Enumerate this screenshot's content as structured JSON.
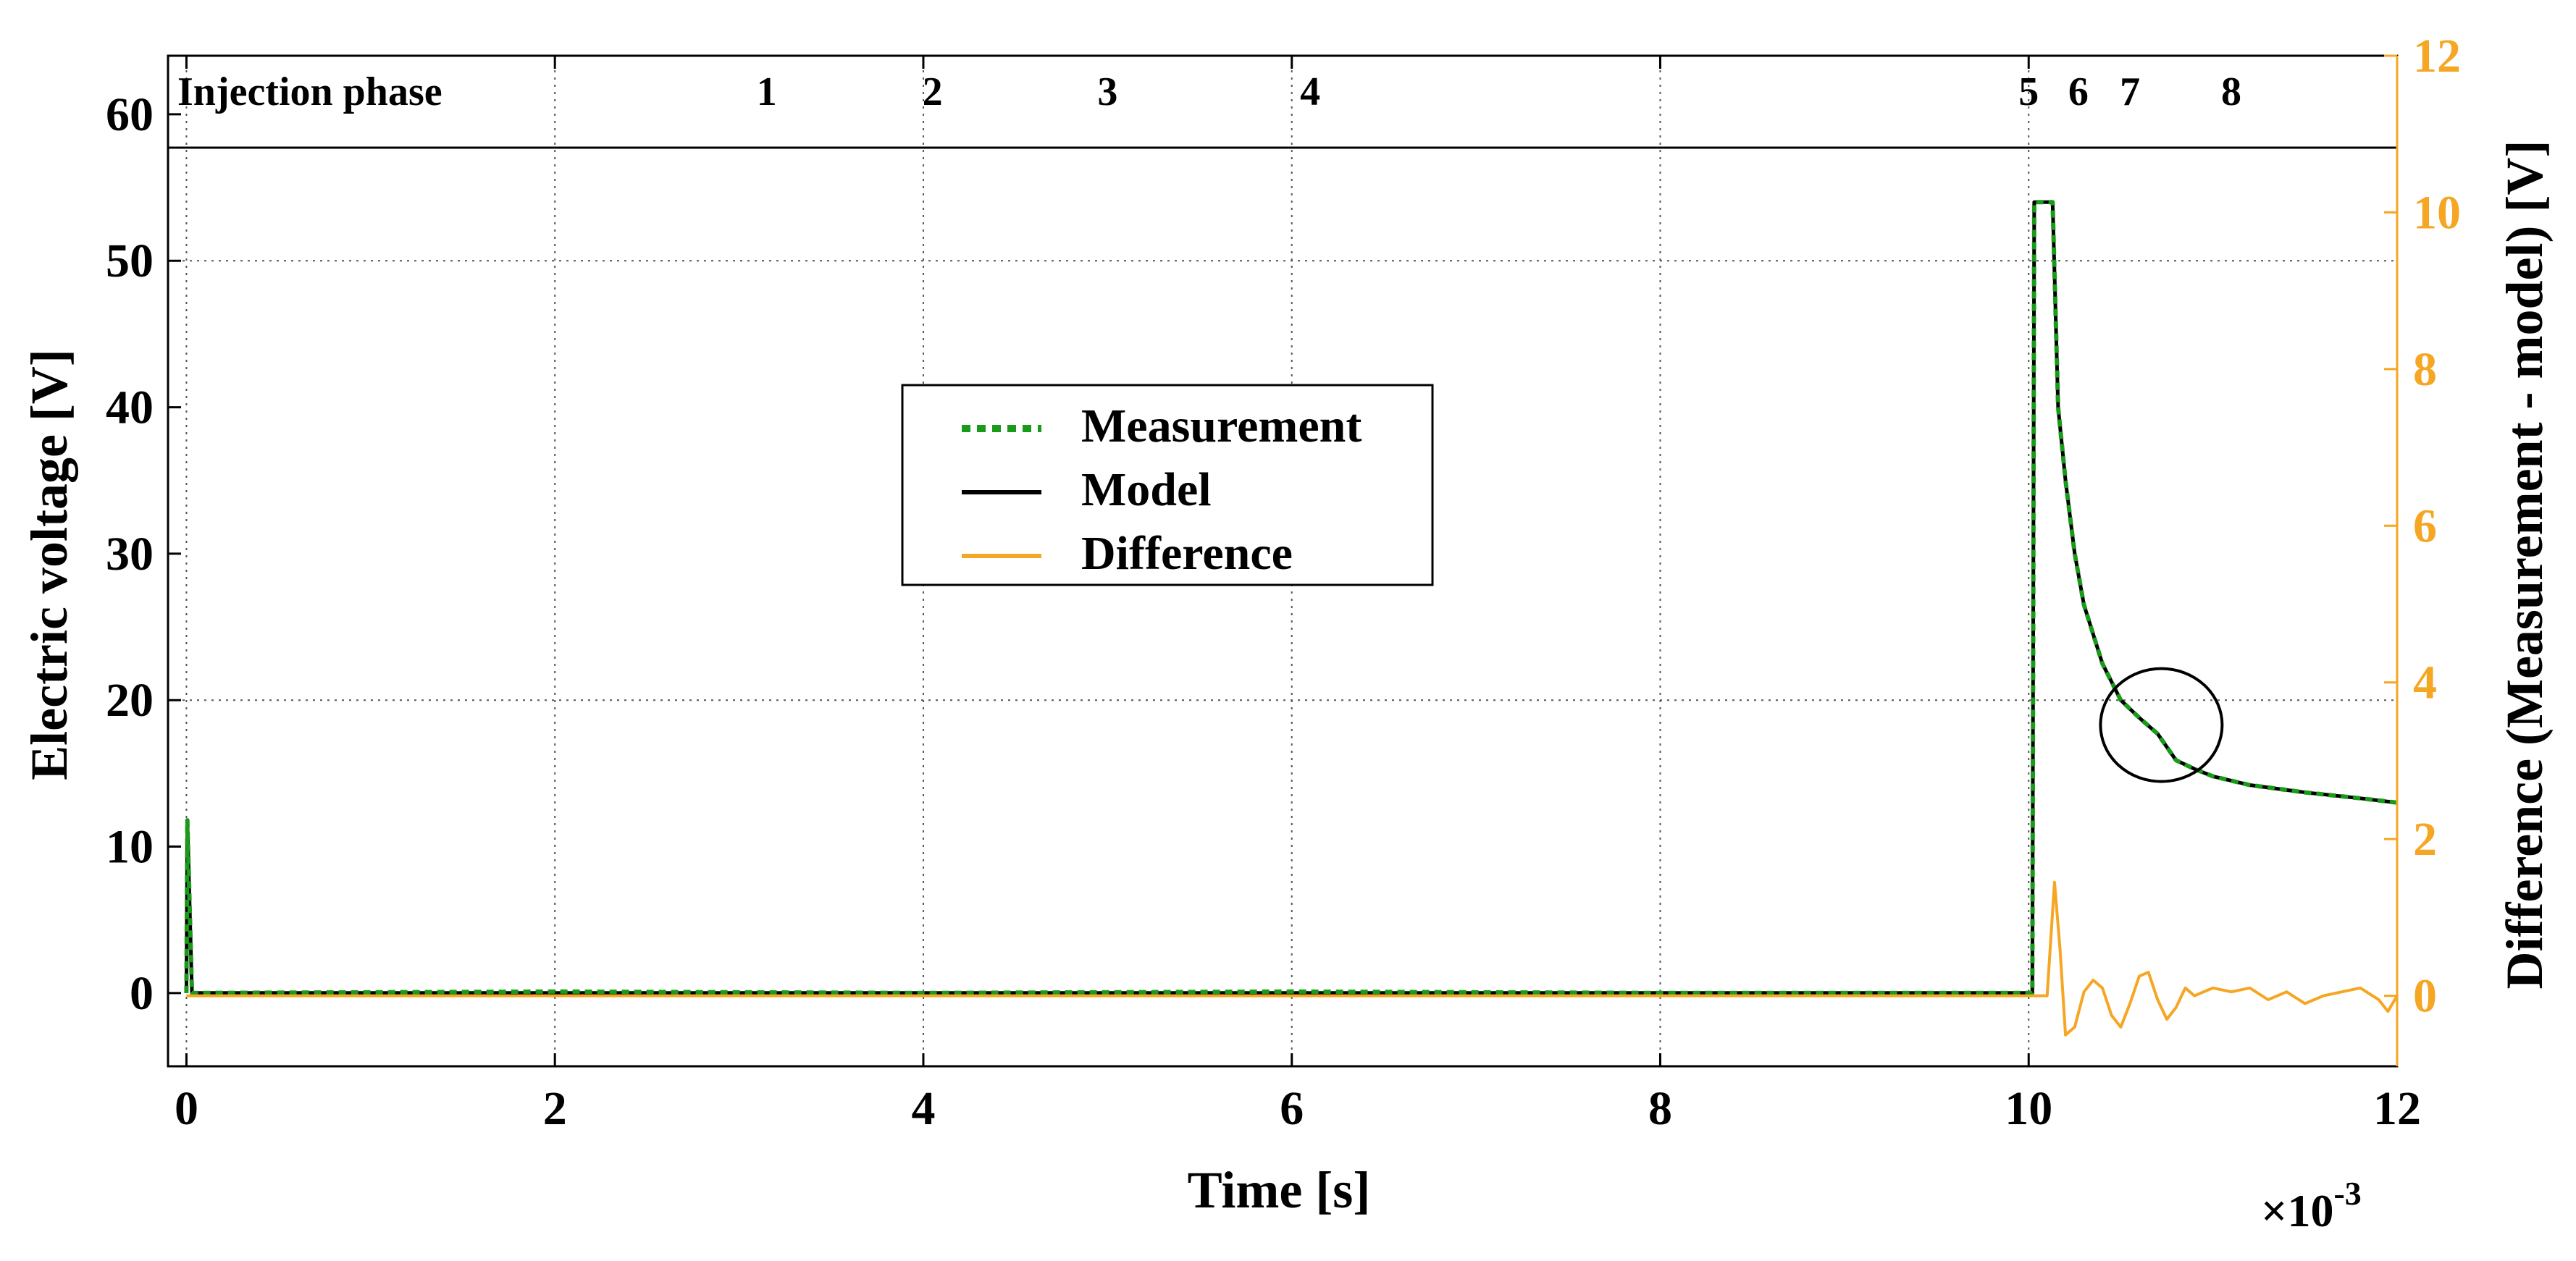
{
  "chart_data": {
    "type": "line",
    "title": "",
    "xlabel": "Time [s]",
    "x_multiplier": "×10",
    "x_multiplier_exp": "-3",
    "ylabel_left": "Electric voltage [V]",
    "ylabel_right": "Difference (Measurement - model) [V]",
    "xlim": [
      -0.1,
      12
    ],
    "ylim_left": [
      -5,
      64
    ],
    "ylim_right": [
      -0.9,
      12
    ],
    "x_ticks": [
      0,
      2,
      4,
      6,
      8,
      10,
      12
    ],
    "y_ticks_left": [
      0,
      10,
      20,
      30,
      40,
      50,
      60
    ],
    "y_ticks_right": [
      0,
      2,
      4,
      6,
      8,
      10,
      12
    ],
    "grid": "dotted",
    "phase_band": {
      "label": "Injection phase",
      "markers": [
        {
          "label": "1",
          "x": 3.15
        },
        {
          "label": "2",
          "x": 4.05
        },
        {
          "label": "3",
          "x": 5.0
        },
        {
          "label": "4",
          "x": 6.1
        },
        {
          "label": "5",
          "x": 10.0
        },
        {
          "label": "6",
          "x": 10.27
        },
        {
          "label": "7",
          "x": 10.55
        },
        {
          "label": "8",
          "x": 11.1
        }
      ]
    },
    "legend": {
      "placement": "center-left",
      "entries": [
        {
          "label": "Measurement",
          "style": "dotted",
          "color": "#1a9a1a"
        },
        {
          "label": "Model",
          "style": "solid",
          "color": "#000000"
        },
        {
          "label": "Difference",
          "style": "solid",
          "color": "#f5a623"
        }
      ]
    },
    "annotation": {
      "type": "circle",
      "x": 10.72,
      "y": 18.3,
      "note": "highlighted region"
    },
    "series": [
      {
        "name": "Model",
        "axis": "left",
        "color": "#000000",
        "x": [
          0,
          0.005,
          0.03,
          10.0,
          10.02,
          10.03,
          10.13,
          10.16,
          10.2,
          10.25,
          10.3,
          10.4,
          10.5,
          10.6,
          10.7,
          10.75,
          10.8,
          10.9,
          11.0,
          11.2,
          11.5,
          11.8,
          12.0
        ],
        "values": [
          0,
          11.8,
          0,
          0,
          0,
          54,
          54,
          40,
          35,
          30,
          26.5,
          22.5,
          20.0,
          18.8,
          17.7,
          16.8,
          15.9,
          15.3,
          14.8,
          14.2,
          13.7,
          13.3,
          13.0
        ]
      },
      {
        "name": "Measurement",
        "axis": "left",
        "color": "#1a9a1a",
        "x": [
          0,
          0.005,
          0.03,
          2.0,
          4.0,
          6.0,
          8.0,
          10.0,
          10.02,
          10.03,
          10.13,
          10.16,
          10.2,
          10.25,
          10.3,
          10.4,
          10.5,
          10.6,
          10.7,
          10.75,
          10.8,
          10.9,
          11.0,
          11.2,
          11.5,
          11.8,
          12.0
        ],
        "values": [
          0,
          11.8,
          0,
          0.1,
          0,
          0.1,
          0,
          0,
          0,
          54,
          54,
          40,
          35,
          30,
          26.5,
          22.5,
          20.0,
          18.8,
          17.7,
          16.8,
          15.9,
          15.3,
          14.8,
          14.2,
          13.7,
          13.3,
          13.0
        ]
      },
      {
        "name": "Difference",
        "axis": "right",
        "color": "#f5a623",
        "x": [
          0,
          10.1,
          10.14,
          10.17,
          10.2,
          10.25,
          10.3,
          10.35,
          10.4,
          10.45,
          10.5,
          10.55,
          10.6,
          10.65,
          10.7,
          10.75,
          10.8,
          10.85,
          10.9,
          11.0,
          11.1,
          11.2,
          11.3,
          11.4,
          11.5,
          11.6,
          11.7,
          11.8,
          11.9,
          11.95,
          12.0
        ],
        "values": [
          0,
          0,
          1.45,
          0.6,
          -0.5,
          -0.4,
          0.05,
          0.2,
          0.1,
          -0.25,
          -0.4,
          -0.1,
          0.25,
          0.3,
          -0.05,
          -0.3,
          -0.15,
          0.1,
          0.0,
          0.1,
          0.05,
          0.1,
          -0.05,
          0.05,
          -0.1,
          0.0,
          0.05,
          0.1,
          -0.05,
          -0.2,
          0.0
        ]
      }
    ]
  }
}
